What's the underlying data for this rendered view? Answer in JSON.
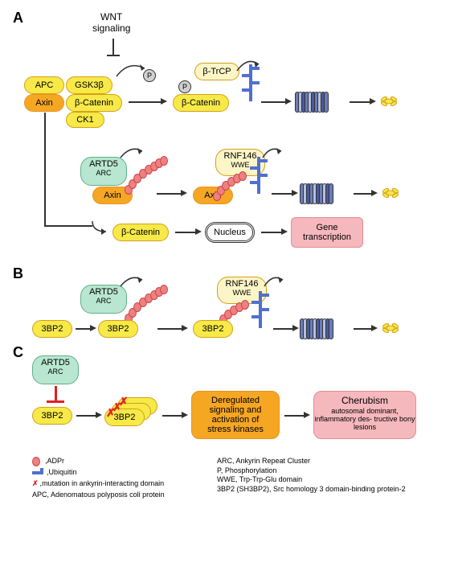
{
  "panels": {
    "A": "A",
    "B": "B",
    "C": "C"
  },
  "wnt": "WNT\nsignaling",
  "proteins": {
    "apc": "APC",
    "gsk3b": "GSK3β",
    "axin": "Axin",
    "bcat": "β-Catenin",
    "ck1": "CK1",
    "btrcp": "β-TrCP",
    "artd5": "ARTD5",
    "arc": "ARC",
    "rnf146": "RNF146",
    "wwe": "WWE",
    "nucleus": "Nucleus",
    "gene": "Gene\ntranscription",
    "3bp2": "3BP2",
    "dereg": "Deregulated\nsignaling and\nactivation of\nstress kinases",
    "cherub": "Cherubism",
    "cherub_sub": "autosomal dominant,\ninflammatory des-\ntructive bony lesions",
    "p": "P"
  },
  "legend": {
    "adpr": "ADPr",
    "ubiq": "Ubiquitin",
    "mut": "mutation in ankyrin-interacting domain",
    "apc": "APC, Adenomatous polyposis coli protein",
    "arc": "ARC, Ankyrin Repeat Cluster",
    "p": "P, Phosphorylation",
    "wwe": "WWE, Trp-Trp-Glu domain",
    "3bp2": "3BP2 (SH3BP2), Src homology 3 domain-binding protein-2"
  },
  "colors": {
    "yellow": "#f7e948",
    "yellow_border": "#d4a017",
    "orange": "#f5a623",
    "orange_dark": "#e8941e",
    "light_yellow": "#fcf5c7",
    "mint": "#b8e6d0",
    "mint_border": "#5fb08a",
    "gray": "#d0d0d0",
    "pink": "#f5b8bd",
    "pink_border": "#e88a92",
    "white": "#ffffff",
    "adpr": "#f08080",
    "adpr_border": "#c94545",
    "ubiq": "#5070d0",
    "prot1": "#6a7db8",
    "prot2": "#b8c0e0",
    "prot3": "#4a5a9a",
    "red": "#e02020",
    "orange_box": "#f5a623"
  }
}
